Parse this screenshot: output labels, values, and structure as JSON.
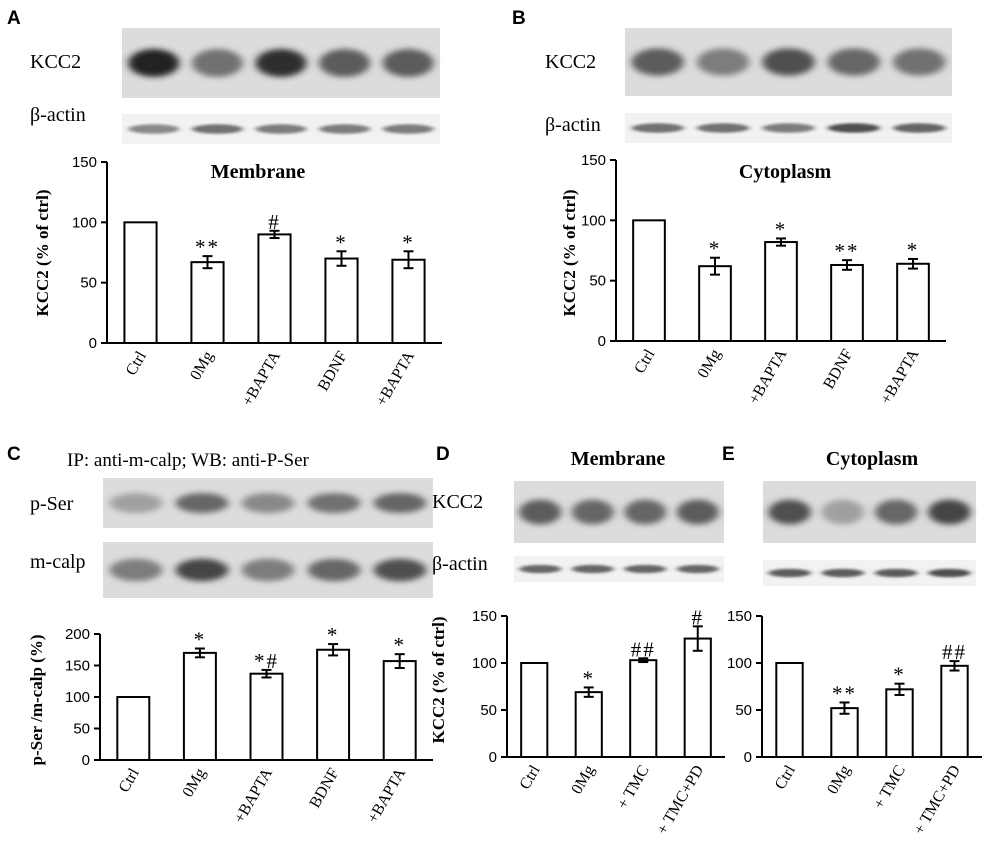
{
  "panels": [
    {
      "letter": "A",
      "blots": [
        {
          "label": "KCC2",
          "intensity": [
            0.9,
            0.55,
            0.85,
            0.65,
            0.65
          ],
          "style": "thick"
        },
        {
          "label": "β-actin",
          "intensity": [
            0.45,
            0.55,
            0.5,
            0.5,
            0.5
          ],
          "style": "thin"
        }
      ],
      "ip_label": ""
    },
    {
      "letter": "B",
      "blots": [
        {
          "label": "KCC2",
          "intensity": [
            0.65,
            0.5,
            0.7,
            0.6,
            0.55
          ],
          "style": "thick"
        },
        {
          "label": "β-actin",
          "intensity": [
            0.55,
            0.55,
            0.5,
            0.7,
            0.6
          ],
          "style": "thin"
        }
      ],
      "ip_label": ""
    },
    {
      "letter": "C",
      "blots": [
        {
          "label": "p-Ser",
          "intensity": [
            0.35,
            0.6,
            0.45,
            0.55,
            0.6
          ],
          "style": "thick"
        },
        {
          "label": "m-calp",
          "intensity": [
            0.5,
            0.75,
            0.5,
            0.6,
            0.7
          ],
          "style": "thick"
        }
      ],
      "ip_label": "IP: anti-m-calp; WB: anti-P-Ser"
    },
    {
      "letter": "D",
      "blots": [
        {
          "label": "KCC2",
          "intensity": [
            0.65,
            0.6,
            0.6,
            0.65
          ],
          "style": "thick"
        },
        {
          "label": "β-actin",
          "intensity": [
            0.6,
            0.6,
            0.6,
            0.6
          ],
          "style": "thin"
        }
      ],
      "ip_label": ""
    },
    {
      "letter": "E",
      "blots": [
        {
          "label": "",
          "intensity": [
            0.7,
            0.35,
            0.6,
            0.75
          ],
          "style": "thick"
        },
        {
          "label": "",
          "intensity": [
            0.65,
            0.65,
            0.65,
            0.7
          ],
          "style": "thin"
        }
      ],
      "ip_label": ""
    }
  ],
  "chart_data": [
    {
      "panel": "A",
      "type": "bar",
      "title": "Membrane",
      "ylabel": "KCC2  (% of ctrl)",
      "ylim": [
        0,
        150
      ],
      "yticks": [
        0,
        50,
        100,
        150
      ],
      "categories": [
        "Ctrl",
        "0Mg",
        "+BAPTA",
        "BDNF",
        "+BAPTA"
      ],
      "values": [
        100,
        67,
        90,
        70,
        69
      ],
      "errors": [
        0,
        5,
        3,
        6,
        7
      ],
      "annotations": [
        "",
        "**",
        "#",
        "*",
        "*"
      ]
    },
    {
      "panel": "B",
      "type": "bar",
      "title": "Cytoplasm",
      "ylabel": "KCC2  (% of ctrl)",
      "ylim": [
        0,
        150
      ],
      "yticks": [
        0,
        50,
        100,
        150
      ],
      "categories": [
        "Ctrl",
        "0Mg",
        "+BAPTA",
        "BDNF",
        "+BAPTA"
      ],
      "values": [
        100,
        62,
        82,
        63,
        64
      ],
      "errors": [
        0,
        7,
        3,
        4,
        4
      ],
      "annotations": [
        "",
        "*",
        "*",
        "**",
        "*"
      ]
    },
    {
      "panel": "C",
      "type": "bar",
      "title": "",
      "ylabel": "p-Ser /m-calp (%)",
      "ylim": [
        0,
        200
      ],
      "yticks": [
        0,
        50,
        100,
        150,
        200
      ],
      "categories": [
        "Ctrl",
        "0Mg",
        "+BAPTA",
        "BDNF",
        "+BAPTA"
      ],
      "values": [
        100,
        170,
        137,
        175,
        157
      ],
      "errors": [
        0,
        7,
        6,
        9,
        11
      ],
      "annotations": [
        "",
        "*",
        "*#",
        "*",
        "*"
      ]
    },
    {
      "panel": "D",
      "type": "bar",
      "title": "Membrane",
      "ylabel": "KCC2  (% of ctrl)",
      "ylim": [
        0,
        150
      ],
      "yticks": [
        0,
        50,
        100,
        150
      ],
      "categories": [
        "Ctrl",
        "0Mg",
        "+ TMC",
        "+ TMC+PD"
      ],
      "values": [
        100,
        69,
        103,
        126
      ],
      "errors": [
        0,
        5,
        2,
        13
      ],
      "annotations": [
        "",
        "*",
        "##",
        "#"
      ]
    },
    {
      "panel": "E",
      "type": "bar",
      "title": "Cytoplasm",
      "ylabel": "",
      "ylim": [
        0,
        150
      ],
      "yticks": [
        0,
        50,
        100,
        150
      ],
      "categories": [
        "Ctrl",
        "0Mg",
        "+ TMC",
        "+ TMC+PD"
      ],
      "values": [
        100,
        52,
        72,
        97
      ],
      "errors": [
        0,
        6,
        6,
        5
      ],
      "annotations": [
        "",
        "**",
        "*",
        "##"
      ]
    }
  ]
}
